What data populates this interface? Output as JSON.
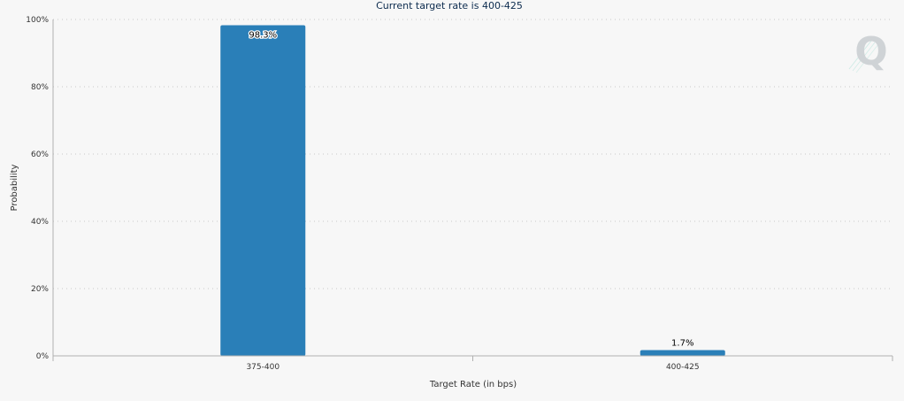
{
  "chart_data": {
    "type": "bar",
    "title": "Current target rate is 400-425",
    "xlabel": "Target Rate (in bps)",
    "ylabel": "Probability",
    "categories": [
      "375-400",
      "400-425"
    ],
    "values": [
      98.3,
      1.7
    ],
    "data_labels": [
      "98.3%",
      "1.7%"
    ],
    "ylim": [
      0,
      100
    ],
    "yticks": [
      0,
      20,
      40,
      60,
      80,
      100
    ],
    "ytick_labels": [
      "0%",
      "20%",
      "40%",
      "60%",
      "80%",
      "100%"
    ],
    "grid": true,
    "legend": "none",
    "bar_color": "#2a7fb8"
  },
  "watermark": {
    "letter": "Q",
    "color": "#cfd3d6",
    "accent": "#bfe6df"
  }
}
